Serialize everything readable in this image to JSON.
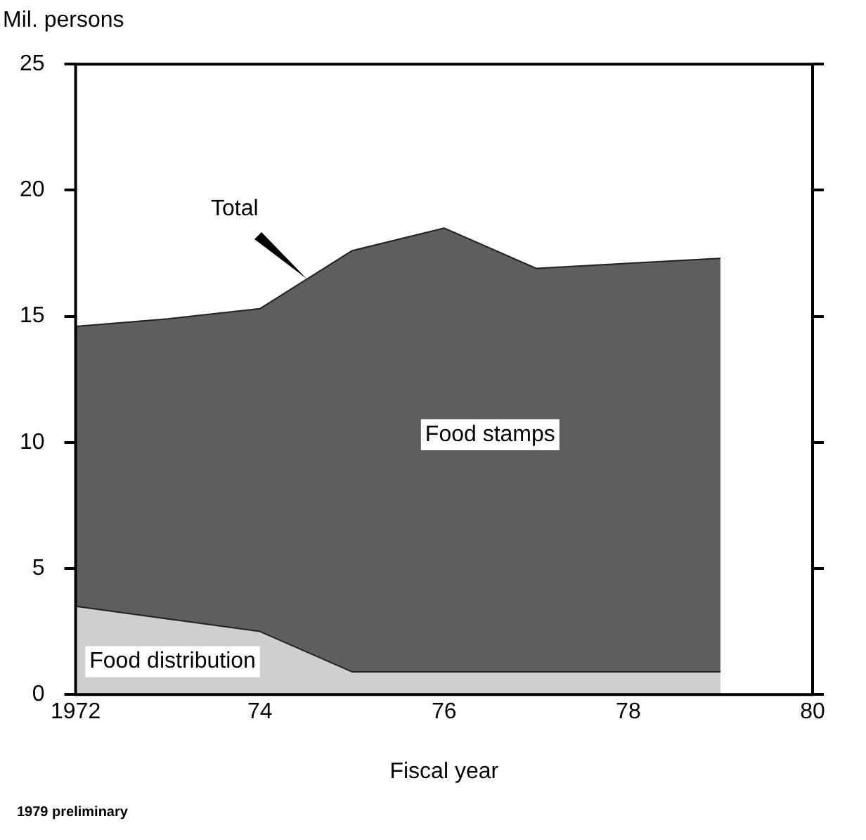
{
  "chart_data": {
    "type": "area",
    "stacked": true,
    "ylabel": "Mil. persons",
    "xlabel": "Fiscal year",
    "x": [
      1972,
      1973,
      1974,
      1975,
      1976,
      1977,
      1978,
      1979
    ],
    "series": [
      {
        "name": "Food distribution",
        "color": "#cfcfcf",
        "values": [
          3.5,
          3.0,
          2.5,
          0.9,
          0.9,
          0.9,
          0.9,
          0.9
        ]
      },
      {
        "name": "Food stamps",
        "color": "#5e5e5e",
        "values": [
          11.1,
          11.9,
          12.8,
          16.7,
          17.6,
          16.0,
          16.2,
          16.4
        ]
      }
    ],
    "xlim": [
      1972,
      1980
    ],
    "xticks": [
      1972,
      {
        "value": 1974,
        "label": "74"
      },
      {
        "value": 1976,
        "label": "76"
      },
      {
        "value": 1978,
        "label": "78"
      },
      {
        "value": 1980,
        "label": "80"
      }
    ],
    "ylim": [
      0,
      25
    ],
    "yticks": [
      0,
      5,
      10,
      15,
      20,
      25
    ],
    "grid": false,
    "legend": false,
    "annotations": [
      "Total",
      "1979 preliminary"
    ]
  }
}
